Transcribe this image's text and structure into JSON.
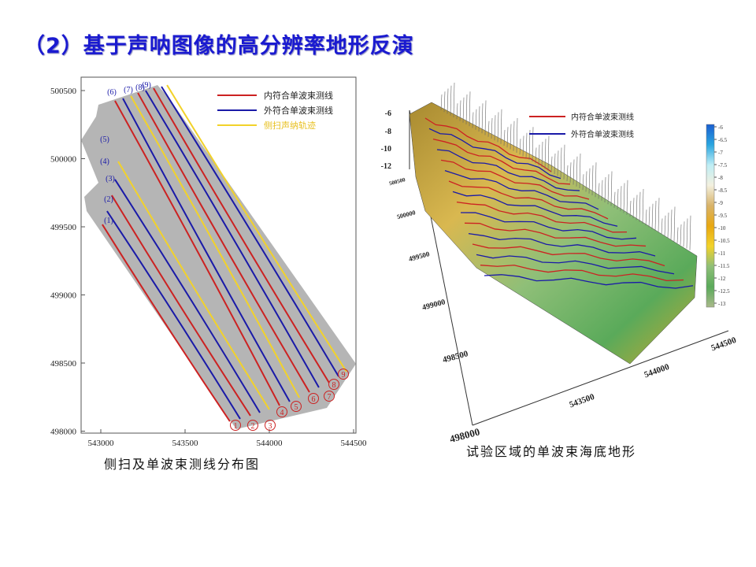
{
  "slide": {
    "title": "（2）基于声呐图像的高分辨率地形反演",
    "left_caption": "侧扫及单波束测线分布图",
    "right_caption": "试验区域的单波束海底地形"
  },
  "chart_data": [
    {
      "type": "line",
      "xlim": [
        542900,
        544550
      ],
      "ylim": [
        497980,
        500580
      ],
      "x_ticks": [
        "543000",
        "543500",
        "544000",
        "544500"
      ],
      "y_ticks": [
        "500500",
        "500000",
        "499500",
        "499000",
        "498500",
        "498000"
      ],
      "grid": false,
      "legend_position": "top-right",
      "legend": [
        {
          "label": "内符合单波束测线",
          "color": "#cc2222"
        },
        {
          "label": "外符合单波束测线",
          "color": "#1a1aa8"
        },
        {
          "label": "侧扫声纳轨迹",
          "color": "#f2d22a"
        }
      ],
      "series": [
        {
          "kind": "inner",
          "x": [
            543009,
            543766
          ],
          "y": [
            499517,
            498072
          ]
        },
        {
          "kind": "outer",
          "x": [
            543037,
            543827
          ],
          "y": [
            499615,
            498090
          ]
        },
        {
          "kind": "inner",
          "x": [
            543065,
            543888
          ],
          "y": [
            499731,
            498113
          ]
        },
        {
          "kind": "outer",
          "x": [
            543084,
            543944
          ],
          "y": [
            499847,
            498136
          ]
        },
        {
          "kind": "sidescan",
          "x": [
            543103,
            544000
          ],
          "y": [
            499980,
            498159
          ]
        },
        {
          "kind": "inner",
          "x": [
            543084,
            544061
          ],
          "y": [
            500425,
            498188
          ]
        },
        {
          "kind": "outer",
          "x": [
            543131,
            544121
          ],
          "y": [
            500442,
            498217
          ]
        },
        {
          "kind": "sidescan",
          "x": [
            543178,
            544178
          ],
          "y": [
            500460,
            498246
          ]
        },
        {
          "kind": "inner",
          "x": [
            543220,
            544238
          ],
          "y": [
            500483,
            498286
          ]
        },
        {
          "kind": "outer",
          "x": [
            543266,
            544294
          ],
          "y": [
            500500,
            498321
          ]
        },
        {
          "kind": "inner",
          "x": [
            543313,
            544355
          ],
          "y": [
            500517,
            498355
          ]
        },
        {
          "kind": "outer",
          "x": [
            543360,
            544411
          ],
          "y": [
            500529,
            498402
          ]
        },
        {
          "kind": "sidescan",
          "x": [
            543393,
            544458
          ],
          "y": [
            500540,
            498437
          ]
        }
      ],
      "line_labels_start": [
        "(1)",
        "(2)",
        "(3)",
        "(4)",
        "(5)",
        "(6)",
        "(7)",
        "(8)",
        "(9)"
      ],
      "line_labels_end": [
        "1",
        "2",
        "3",
        "4",
        "5",
        "6",
        "7",
        "8",
        "9"
      ],
      "colors": {
        "inner": "#cc2222",
        "outer": "#1a1aa8",
        "sidescan": "#f2d22a",
        "swath": "#a8a8a8"
      }
    },
    {
      "type": "surface3d",
      "z_ticks": [
        "-6",
        "-8",
        "-10",
        "-12"
      ],
      "y_ticks": [
        "500500",
        "500000",
        "499500",
        "499000",
        "498500",
        "498000"
      ],
      "x_ticks": [
        "543500",
        "544000",
        "544500"
      ],
      "legend": [
        {
          "label": "内符合单波束测线",
          "color": "#cc2222"
        },
        {
          "label": "外符合单波束测线",
          "color": "#1a1aa8"
        }
      ],
      "colorbar": {
        "ticks": [
          "-6",
          "-6.5",
          "-7",
          "-7.5",
          "-8",
          "-8.5",
          "-9",
          "-9.5",
          "-10",
          "-10.5",
          "-11",
          "-11.5",
          "-12",
          "-12.5",
          "-13"
        ],
        "colors": [
          "#1a5fd0",
          "#2aa6e0",
          "#bfeef5",
          "#f3f0df",
          "#d8b36a",
          "#e8a812",
          "#f2d22a",
          "#8fbf78",
          "#5aaa5a",
          "#a9b98a"
        ]
      }
    }
  ]
}
